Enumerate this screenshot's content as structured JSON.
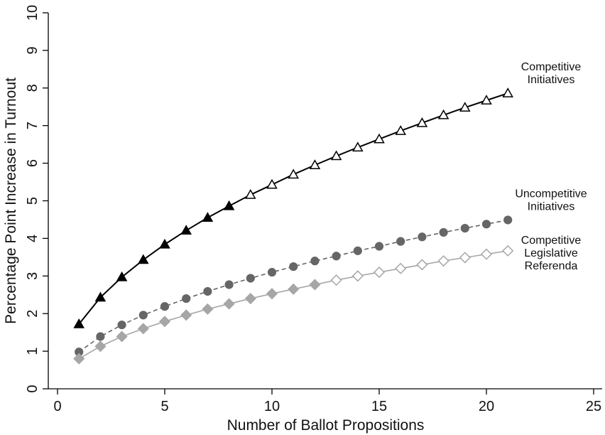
{
  "chart_data": {
    "type": "line",
    "title": "",
    "xlabel": "Number of Ballot Propositions",
    "ylabel": "Percentage Point Increase in Turnout",
    "xlim": [
      0,
      25
    ],
    "ylim": [
      0,
      10
    ],
    "xticks": [
      "0",
      "5",
      "10",
      "15",
      "20",
      "25"
    ],
    "yticks": [
      "0",
      "1",
      "2",
      "3",
      "4",
      "5",
      "6",
      "7",
      "8",
      "9",
      "10"
    ],
    "grid": false,
    "legend": "none",
    "x": [
      1,
      2,
      3,
      4,
      5,
      6,
      7,
      8,
      9,
      10,
      11,
      12,
      13,
      14,
      15,
      16,
      17,
      18,
      19,
      20,
      21
    ],
    "series": [
      {
        "name": "Competitive Initiatives",
        "label_lines": [
          "Competitive",
          "Initiatives"
        ],
        "color": "#000000",
        "line_style": "solid",
        "marker": "triangle",
        "filled_through_x": 8,
        "values": [
          1.72,
          2.43,
          2.97,
          3.43,
          3.84,
          4.21,
          4.55,
          4.86,
          5.16,
          5.43,
          5.7,
          5.95,
          6.19,
          6.42,
          6.64,
          6.86,
          7.07,
          7.28,
          7.48,
          7.67,
          7.86
        ]
      },
      {
        "name": "Uncompetitive Initiatives",
        "label_lines": [
          "Uncompetitive",
          "Initiatives"
        ],
        "color": "#666666",
        "line_style": "dashed",
        "marker": "circle",
        "filled_through_x": 21,
        "values": [
          0.98,
          1.39,
          1.7,
          1.96,
          2.19,
          2.4,
          2.59,
          2.77,
          2.94,
          3.1,
          3.25,
          3.4,
          3.53,
          3.67,
          3.79,
          3.92,
          4.04,
          4.16,
          4.27,
          4.38,
          4.49
        ]
      },
      {
        "name": "Competitive Legislative Referenda",
        "label_lines": [
          "Competitive",
          "Legislative",
          "Referenda"
        ],
        "color": "#a6a6a6",
        "line_style": "solid",
        "marker": "diamond",
        "filled_through_x": 12,
        "values": [
          0.8,
          1.13,
          1.39,
          1.6,
          1.79,
          1.96,
          2.12,
          2.26,
          2.4,
          2.53,
          2.65,
          2.77,
          2.89,
          3.0,
          3.1,
          3.2,
          3.3,
          3.4,
          3.49,
          3.58,
          3.67
        ]
      }
    ]
  }
}
